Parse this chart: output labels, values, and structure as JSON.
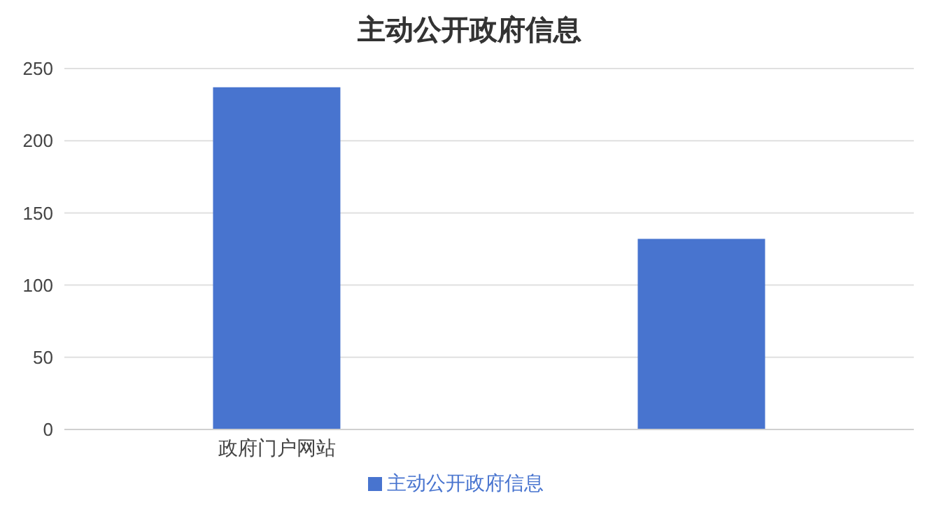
{
  "chart_data": {
    "type": "bar",
    "title": "主动公开政府信息",
    "categories": [
      "政府门户网站",
      null
    ],
    "series": [
      {
        "name": "主动公开政府信息",
        "color": "#4874cf",
        "values": [
          237,
          132
        ]
      }
    ],
    "ylim": [
      0,
      250
    ],
    "yticks": [
      0,
      50,
      100,
      150,
      200,
      250
    ],
    "grid": "y",
    "legend": "bottom"
  }
}
